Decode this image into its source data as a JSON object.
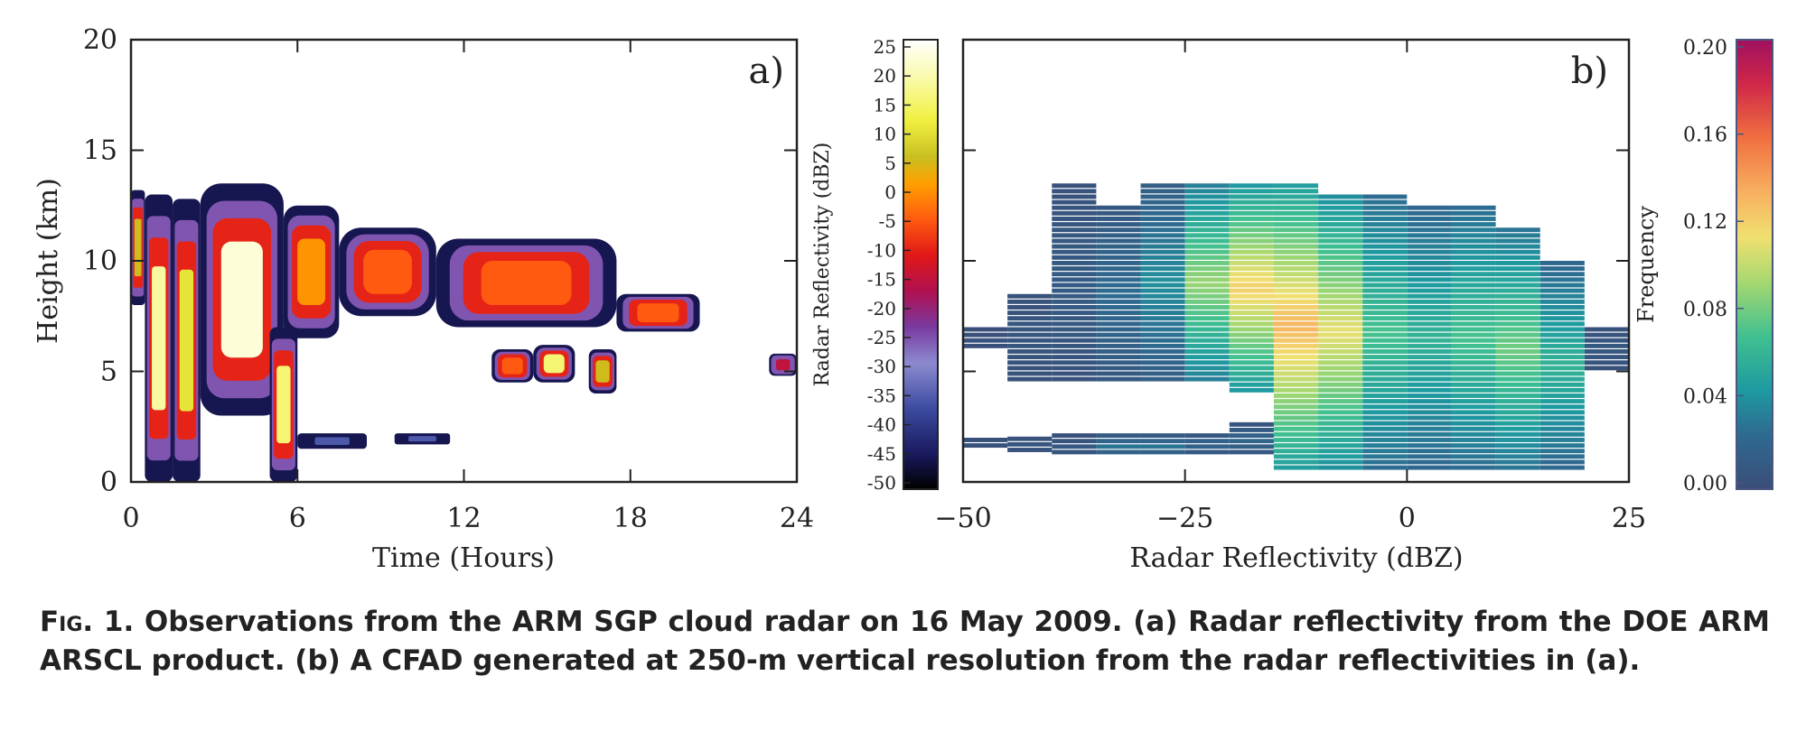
{
  "panel_a": {
    "label": "a)",
    "xlabel": "Time (Hours)",
    "ylabel": "Height (km)",
    "x_ticks": [
      "0",
      "6",
      "12",
      "18",
      "24"
    ],
    "y_ticks": [
      "0",
      "5",
      "10",
      "15",
      "20"
    ]
  },
  "colorbar_a": {
    "label": "Radar Reflectivity (dBZ)",
    "ticks": [
      "25",
      "20",
      "15",
      "10",
      "5",
      "0",
      "-5",
      "-10",
      "-15",
      "-20",
      "-25",
      "-30",
      "-35",
      "-40",
      "-45",
      "-50"
    ]
  },
  "panel_b": {
    "label": "b)",
    "xlabel": "Radar Reflectivity (dBZ)",
    "x_ticks": [
      "−50",
      "−25",
      "0",
      "25"
    ]
  },
  "colorbar_b": {
    "label": "Frequency",
    "ticks": [
      "0.20",
      "0.16",
      "0.12",
      "0.08",
      "0.04",
      "0.00"
    ],
    "tick_color": "#4a5680"
  },
  "caption": {
    "label": "Fig. 1.",
    "text": "Observations from the ARM SGP cloud radar on 16 May 2009. (a) Radar reflectivity from the DOE ARM ARSCL product. (b) A CFAD generated at 250-m vertical resolution from the radar reflectivities in (a)."
  },
  "chart_data": [
    {
      "type": "heatmap",
      "title": "",
      "xlabel": "Time (Hours)",
      "ylabel": "Height (km)",
      "xlim": [
        0,
        24
      ],
      "ylim": [
        0,
        20
      ],
      "colorbar": {
        "label": "Radar Reflectivity (dBZ)",
        "range": [
          -50,
          25
        ]
      },
      "cloud_regions": [
        {
          "t0": 0.0,
          "t1": 0.5,
          "zbot": 8.0,
          "ztop": 13.2,
          "core": 5
        },
        {
          "t0": 0.5,
          "t1": 1.5,
          "zbot": 0.0,
          "ztop": 13.0,
          "core": 18
        },
        {
          "t0": 1.5,
          "t1": 2.5,
          "zbot": 0.0,
          "ztop": 12.8,
          "core": 10
        },
        {
          "t0": 2.5,
          "t1": 5.5,
          "zbot": 3.0,
          "ztop": 13.5,
          "core": 22
        },
        {
          "t0": 5.0,
          "t1": 6.0,
          "zbot": 0.0,
          "ztop": 7.0,
          "core": 15
        },
        {
          "t0": 5.5,
          "t1": 7.5,
          "zbot": 6.5,
          "ztop": 12.5,
          "core": 0
        },
        {
          "t0": 7.5,
          "t1": 11.0,
          "zbot": 7.5,
          "ztop": 11.5,
          "core": -5
        },
        {
          "t0": 11.0,
          "t1": 17.5,
          "zbot": 7.0,
          "ztop": 11.0,
          "core": -5
        },
        {
          "t0": 17.5,
          "t1": 20.5,
          "zbot": 6.8,
          "ztop": 8.5,
          "core": -5
        },
        {
          "t0": 13.0,
          "t1": 14.5,
          "zbot": 4.5,
          "ztop": 6.0,
          "core": -5
        },
        {
          "t0": 14.5,
          "t1": 16.0,
          "zbot": 4.5,
          "ztop": 6.2,
          "core": 15
        },
        {
          "t0": 16.5,
          "t1": 17.5,
          "zbot": 4.0,
          "ztop": 6.0,
          "core": 5
        },
        {
          "t0": 6.0,
          "t1": 8.5,
          "zbot": 1.5,
          "ztop": 2.2,
          "core": -35
        },
        {
          "t0": 9.5,
          "t1": 11.5,
          "zbot": 1.7,
          "ztop": 2.2,
          "core": -35
        },
        {
          "t0": 23.0,
          "t1": 24.0,
          "zbot": 4.8,
          "ztop": 5.8,
          "core": -15
        }
      ]
    },
    {
      "type": "heatmap",
      "title": "",
      "xlabel": "Radar Reflectivity (dBZ)",
      "ylabel": "",
      "xlim": [
        -50,
        25
      ],
      "ylim": [
        0,
        20
      ],
      "colorbar": {
        "label": "Frequency",
        "range": [
          0.0,
          0.2
        ]
      },
      "bin_width_dbz": 5,
      "columns": [
        {
          "x0": -50,
          "zbot": 6.0,
          "ztop": 6.8,
          "freq": 0.005
        },
        {
          "x0": -50,
          "zbot": 1.5,
          "ztop": 2.0,
          "freq": 0.005
        },
        {
          "x0": -45,
          "zbot": 4.5,
          "ztop": 8.5,
          "freq": 0.008
        },
        {
          "x0": -45,
          "zbot": 1.3,
          "ztop": 2.0,
          "freq": 0.008
        },
        {
          "x0": -40,
          "zbot": 4.5,
          "ztop": 13.5,
          "freq": 0.012
        },
        {
          "x0": -40,
          "zbot": 1.2,
          "ztop": 2.0,
          "freq": 0.01
        },
        {
          "x0": -35,
          "zbot": 4.5,
          "ztop": 12.5,
          "freq": 0.025
        },
        {
          "x0": -35,
          "zbot": 1.2,
          "ztop": 2.0,
          "freq": 0.03
        },
        {
          "x0": -30,
          "zbot": 4.5,
          "ztop": 13.5,
          "freq": 0.04
        },
        {
          "x0": -30,
          "zbot": 1.2,
          "ztop": 2.0,
          "freq": 0.03
        },
        {
          "x0": -25,
          "zbot": 4.5,
          "ztop": 13.5,
          "freq": 0.09
        },
        {
          "x0": -25,
          "zbot": 1.2,
          "ztop": 2.2,
          "freq": 0.02
        },
        {
          "x0": -20,
          "zbot": 4.0,
          "ztop": 13.5,
          "freq": 0.12
        },
        {
          "x0": -20,
          "zbot": 1.2,
          "ztop": 2.5,
          "freq": 0.02
        },
        {
          "x0": -15,
          "zbot": 0.5,
          "ztop": 13.5,
          "freq": 0.13
        },
        {
          "x0": -10,
          "zbot": 0.5,
          "ztop": 13.0,
          "freq": 0.11
        },
        {
          "x0": -5,
          "zbot": 0.5,
          "ztop": 13.0,
          "freq": 0.07
        },
        {
          "x0": 0,
          "zbot": 0.5,
          "ztop": 12.5,
          "freq": 0.06
        },
        {
          "x0": 5,
          "zbot": 0.5,
          "ztop": 12.5,
          "freq": 0.07
        },
        {
          "x0": 10,
          "zbot": 0.5,
          "ztop": 11.5,
          "freq": 0.08
        },
        {
          "x0": 15,
          "zbot": 0.5,
          "ztop": 10.0,
          "freq": 0.06
        },
        {
          "x0": 20,
          "zbot": 5.0,
          "ztop": 7.0,
          "freq": 0.01
        }
      ]
    }
  ]
}
